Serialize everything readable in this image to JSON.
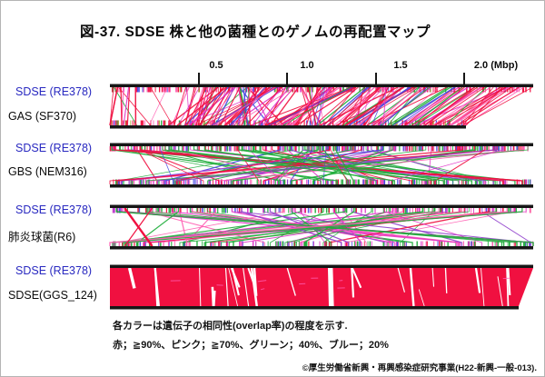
{
  "title": "図-37. SDSE 株と他の菌種とのゲノムの再配置マップ",
  "axis": {
    "unit": "Mbp",
    "labels": [
      "0.5",
      "1.0",
      "1.5",
      "2.0 (Mbp)"
    ]
  },
  "legend": {
    "line1": "各カラーは遺伝子の相同性(overlap率)の程度を示す.",
    "line2": "赤；≧90%、ピンク；≧70%、グリーン；40%、ブルー；20%"
  },
  "copyright": "©厚生労働省新興・再興感染症研究事業(H22-新興-一般-013).",
  "palette": {
    "red": "#f01040",
    "pink": "#ff5fb4",
    "magenta": "#e032c8",
    "green": "#1ead3a",
    "blue": "#4848e0",
    "purple": "#9040cc",
    "olive": "#a0a832",
    "bar": "#161616",
    "label_blue": "#2828c0"
  },
  "panels": [
    {
      "query_label": "SDSE (RE378)",
      "subject_label": "GAS (SF370)",
      "homology": "very high, mostly collinear (red/pink dense)",
      "seed": 11,
      "mode": "mapped",
      "top_bar": [
        2,
        466
      ],
      "bottom_bar": [
        2,
        392
      ],
      "bar_ticks": [
        230,
        190
      ],
      "bar_tick_palette": [
        "red",
        "red",
        "red",
        "red",
        "magenta",
        "pink",
        "pink",
        "green",
        "blue",
        "olive"
      ],
      "connector_count": 230,
      "connector_palette": [
        "red",
        "red",
        "red",
        "red",
        "red",
        "magenta",
        "pink",
        "pink",
        "green",
        "blue"
      ],
      "inversions": [
        [
          0.3,
          0.4
        ],
        [
          0.45,
          0.58
        ],
        [
          0.65,
          0.72
        ]
      ],
      "skip_ranges": [
        [
          0.07,
          0.185
        ]
      ],
      "jitter": 10,
      "messy_ratio": 0.25,
      "stub": false
    },
    {
      "query_label": "SDSE (RE378)",
      "subject_label": "GBS (NEM316)",
      "homology": "moderate, heavily rearranged (multicolor crisscross)",
      "seed": 7,
      "mode": "scatter",
      "top_bar": [
        2,
        466
      ],
      "bottom_bar": [
        2,
        466
      ],
      "bar_ticks": [
        260,
        260
      ],
      "bar_tick_palette": [
        "red",
        "green",
        "blue",
        "magenta",
        "pink",
        "purple",
        "red",
        "green"
      ],
      "connector_count": 74,
      "connector_palette": [
        "green",
        "green",
        "red",
        "blue",
        "magenta",
        "purple",
        "pink",
        "red"
      ],
      "anti_ratio": 0.45,
      "stub": true
    },
    {
      "query_label": "SDSE (RE378)",
      "subject_label": "肺炎球菌(R6)",
      "homology": "low, sparse crisscross (green/pink dominant)",
      "seed": 23,
      "mode": "scatter",
      "top_bar": [
        2,
        466
      ],
      "bottom_bar": [
        2,
        466
      ],
      "bar_ticks": [
        170,
        170
      ],
      "bar_tick_palette": [
        "green",
        "magenta",
        "pink",
        "red",
        "blue",
        "green"
      ],
      "connector_count": 58,
      "connector_palette": [
        "green",
        "green",
        "green",
        "magenta",
        "pink",
        "red",
        "purple"
      ],
      "anti_ratio": 0.55,
      "stub": true,
      "extras": [
        {
          "t": 0.035,
          "bt": 0.1,
          "color": "red",
          "w": 2.4
        },
        {
          "t": 0.1,
          "bt": 0.035,
          "color": "red",
          "w": 1.2
        }
      ]
    },
    {
      "query_label": "SDSE (RE378)",
      "subject_label": "SDSE(GGS_124)",
      "homology": "near identical (solid red block)",
      "seed": 5,
      "mode": "solid",
      "top_bar": [
        2,
        466
      ],
      "bottom_bar": [
        2,
        450
      ],
      "gap_count": 30,
      "fleck_count": 9
    }
  ]
}
